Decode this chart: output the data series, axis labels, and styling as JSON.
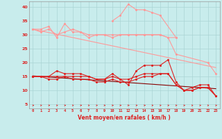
{
  "x": [
    0,
    1,
    2,
    3,
    4,
    5,
    6,
    7,
    8,
    9,
    10,
    11,
    12,
    13,
    14,
    15,
    16,
    17,
    18,
    19,
    20,
    21,
    22,
    23
  ],
  "pink_trend": [
    32,
    31.4,
    30.8,
    30.2,
    29.6,
    29.0,
    28.4,
    27.8,
    27.2,
    26.6,
    26.0,
    25.4,
    24.8,
    24.2,
    23.6,
    23.0,
    22.4,
    21.8,
    21.2,
    20.6,
    20.0,
    19.4,
    18.8,
    18.2
  ],
  "pink_jagged1": [
    32,
    32,
    33,
    29,
    34,
    31,
    31,
    29,
    30,
    30,
    29,
    30,
    30,
    30,
    30,
    30,
    30,
    29,
    23,
    null,
    null,
    null,
    20,
    16
  ],
  "pink_jagged2": [
    null,
    null,
    null,
    null,
    null,
    null,
    null,
    null,
    null,
    null,
    35,
    37,
    41,
    39,
    39,
    38,
    37,
    null,
    29,
    null,
    null,
    null,
    null,
    null
  ],
  "pink_stable": [
    32,
    31,
    32,
    30,
    31,
    32,
    31,
    30,
    30,
    30,
    30,
    30,
    30,
    30,
    30,
    30,
    30,
    29,
    29,
    null,
    null,
    null,
    null,
    null
  ],
  "red_trend": [
    15.2,
    15.0,
    14.8,
    14.6,
    14.4,
    14.2,
    14.0,
    13.8,
    13.6,
    13.4,
    13.2,
    13.0,
    12.8,
    12.6,
    12.4,
    12.2,
    12.0,
    11.8,
    11.6,
    11.4,
    11.2,
    11.0,
    10.8,
    10.6
  ],
  "red_jagged1": [
    15,
    15,
    15,
    17,
    16,
    16,
    16,
    15,
    14,
    14,
    16,
    14,
    12,
    17,
    19,
    19,
    19,
    21,
    13,
    10,
    11,
    12,
    12,
    8
  ],
  "red_jagged2": [
    15,
    15,
    15,
    15,
    15,
    15,
    15,
    15,
    14,
    14,
    15,
    14,
    14,
    15,
    16,
    16,
    16,
    16,
    12,
    10,
    10,
    11,
    11,
    8
  ],
  "red_jagged3": [
    15,
    15,
    14,
    14,
    15,
    14,
    14,
    14,
    13,
    13,
    14,
    13,
    13,
    14,
    15,
    15,
    16,
    16,
    12,
    10,
    10,
    11,
    11,
    8
  ],
  "arrow_angles": [
    90,
    75,
    90,
    80,
    90,
    80,
    90,
    80,
    75,
    60,
    60,
    55,
    50,
    90,
    90,
    85,
    80,
    75,
    60,
    70,
    80,
    85,
    70,
    80
  ],
  "background_color": "#c8ecec",
  "grid_color": "#aad4d4",
  "pink": "#ff9999",
  "red": "#dd2222",
  "xlabel": "Vent moyen/en rafales ( km/h )",
  "ylabel_values": [
    5,
    10,
    15,
    20,
    25,
    30,
    35,
    40
  ],
  "ylim": [
    3.5,
    42
  ],
  "xlim": [
    -0.5,
    23.5
  ]
}
